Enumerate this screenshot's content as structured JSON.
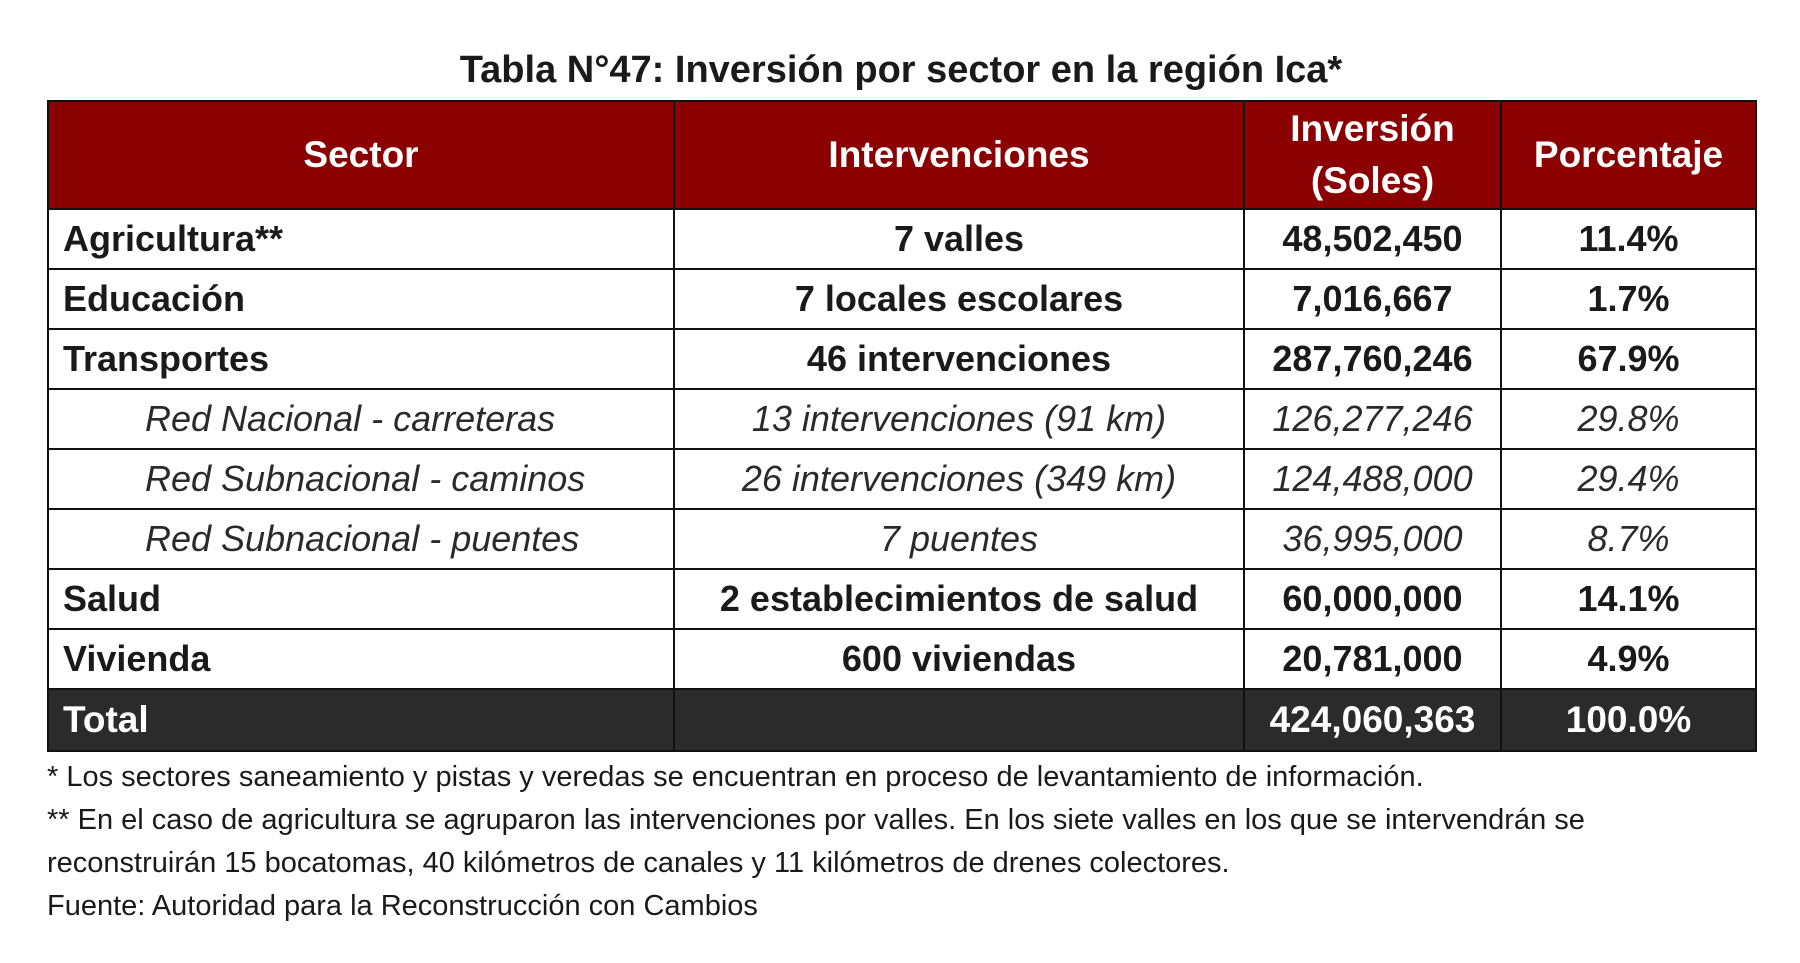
{
  "title": "Tabla N°47: Inversión por sector en la región Ica*",
  "headers": {
    "sector": "Sector",
    "intervenciones": "Intervenciones",
    "inversion_line1": "Inversión",
    "inversion_line2": "(Soles)",
    "porcentaje": "Porcentaje"
  },
  "rows": [
    {
      "sector": "Agricultura**",
      "intervenciones": "7 valles",
      "inversion": "48,502,450",
      "porcentaje": "11.4%"
    },
    {
      "sector": "Educación",
      "intervenciones": "7 locales escolares",
      "inversion": "7,016,667",
      "porcentaje": "1.7%"
    },
    {
      "sector": "Transportes",
      "intervenciones": "46 intervenciones",
      "inversion": "287,760,246",
      "porcentaje": "67.9%"
    },
    {
      "sector": "Red Nacional - carreteras",
      "intervenciones": "13 intervenciones (91 km)",
      "inversion": "126,277,246",
      "porcentaje": "29.8%"
    },
    {
      "sector": "Red Subnacional - caminos",
      "intervenciones": "26 intervenciones (349 km)",
      "inversion": "124,488,000",
      "porcentaje": "29.4%"
    },
    {
      "sector": "Red Subnacional - puentes",
      "intervenciones": "7 puentes",
      "inversion": "36,995,000",
      "porcentaje": "8.7%"
    },
    {
      "sector": "Salud",
      "intervenciones": "2 establecimientos de salud",
      "inversion": "60,000,000",
      "porcentaje": "14.1%"
    },
    {
      "sector": "Vivienda",
      "intervenciones": "600 viviendas",
      "inversion": "20,781,000",
      "porcentaje": "4.9%"
    }
  ],
  "total": {
    "sector": "Total",
    "intervenciones": "",
    "inversion": "424,060,363",
    "porcentaje": "100.0%"
  },
  "notes": [
    "* Los sectores saneamiento y pistas y veredas se encuentran en proceso de levantamiento de información.",
    "** En el caso de agricultura se agruparon las intervenciones por valles. En los siete valles en los que se intervendrán se reconstruirán 15 bocatomas, 40 kilómetros de canales y 11 kilómetros de drenes colectores.",
    "Fuente: Autoridad para la Reconstrucción con Cambios"
  ],
  "colors": {
    "header_bg": "#8b0000",
    "total_bg": "#2b2b2b"
  }
}
